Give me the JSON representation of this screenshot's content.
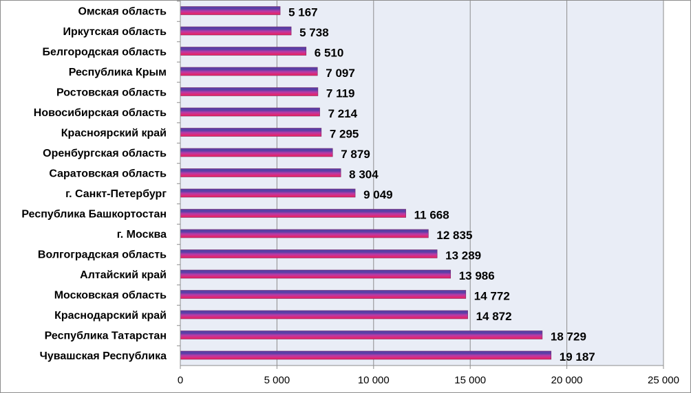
{
  "chart_data": {
    "type": "bar",
    "orientation": "horizontal",
    "categories": [
      "Омская область",
      "Иркутская область",
      "Белгородская область",
      "Республика Крым",
      "Ростовская область",
      "Новосибирская область",
      "Красноярский край",
      "Оренбургская область",
      "Саратовская  область",
      "г. Санкт-Петербург",
      "Республика Башкортостан",
      "г. Москва",
      "Волгоградская  область",
      "Алтайский край",
      "Московская  область",
      "Краснодарский край",
      "Республика Татарстан",
      "Чувашская  Республика"
    ],
    "values": [
      5167,
      5738,
      6510,
      7097,
      7119,
      7214,
      7295,
      7879,
      8304,
      9049,
      11668,
      12835,
      13289,
      13986,
      14772,
      14872,
      18729,
      19187
    ],
    "value_labels": [
      "5 167",
      "5 738",
      "6 510",
      "7 097",
      "7 119",
      "7 214",
      "7 295",
      "7 879",
      "8 304",
      "9 049",
      "11 668",
      "12 835",
      "13 289",
      "13 986",
      "14 772",
      "14 872",
      "18 729",
      "19 187"
    ],
    "x_ticks": [
      0,
      5000,
      10000,
      15000,
      20000,
      25000
    ],
    "x_tick_labels": [
      "0",
      "5 000",
      "10 000",
      "15 000",
      "20 000",
      "25 000"
    ],
    "xlim": [
      0,
      25000
    ],
    "grid": true,
    "legend": "none",
    "title": "",
    "xlabel": "",
    "ylabel": "",
    "colors": {
      "plot_background": "#e9edf6",
      "gridline": "#8c8c8c",
      "bar_top": "#5a3fa6",
      "bar_mid": "#b93aa8",
      "bar_bottom": "#f0205a",
      "bar_outline": "#7a2a6a"
    }
  }
}
